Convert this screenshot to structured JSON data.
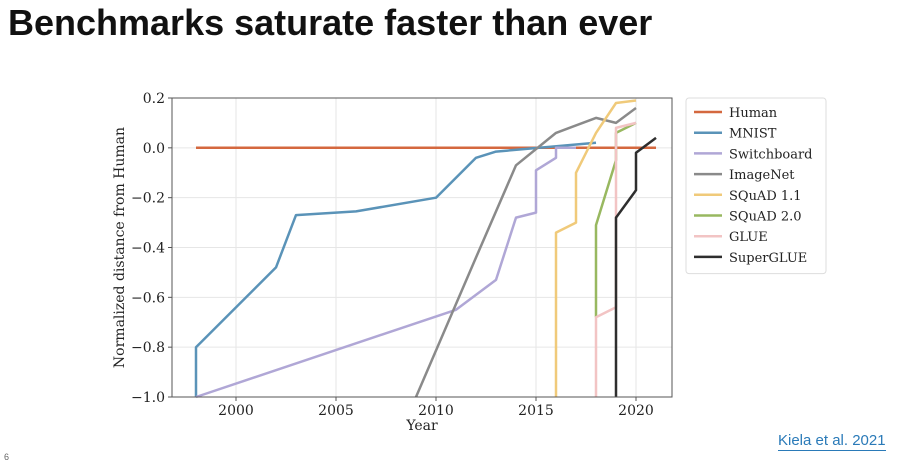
{
  "page": {
    "title": "Benchmarks saturate faster than ever",
    "citation": "Kiela et al. 2021",
    "slide_number": "6"
  },
  "chart_data": {
    "type": "line",
    "title": "",
    "xlabel": "Year",
    "ylabel": "Normalized distance from Human",
    "xlim": [
      1996.8,
      2021.8
    ],
    "ylim": [
      -1.0,
      0.2
    ],
    "xticks": [
      2000,
      2005,
      2010,
      2015,
      2020
    ],
    "yticks": [
      -1.0,
      -0.8,
      -0.6,
      -0.4,
      -0.2,
      0.0,
      0.2
    ],
    "ytick_labels": [
      "−1.0",
      "−0.8",
      "−0.6",
      "−0.4",
      "−0.2",
      "0.0",
      "0.2"
    ],
    "grid": true,
    "legend_position": "outside-right",
    "series": [
      {
        "name": "Human",
        "color": "#d4683f",
        "x": [
          1998,
          2021
        ],
        "y": [
          0.0,
          0.0
        ]
      },
      {
        "name": "MNIST",
        "color": "#5a93b8",
        "x": [
          1998,
          1998,
          2002,
          2003,
          2006,
          2010,
          2012,
          2013,
          2018
        ],
        "y": [
          -1.0,
          -0.8,
          -0.48,
          -0.27,
          -0.255,
          -0.2,
          -0.04,
          -0.015,
          0.02
        ]
      },
      {
        "name": "Switchboard",
        "color": "#b0a7d6",
        "x": [
          1998,
          2011,
          2013,
          2014,
          2015,
          2015,
          2016,
          2016,
          2017
        ],
        "y": [
          -1.0,
          -0.65,
          -0.53,
          -0.28,
          -0.26,
          -0.09,
          -0.04,
          0.0,
          0.0
        ]
      },
      {
        "name": "ImageNet",
        "color": "#8a8a8a",
        "x": [
          2009,
          2012,
          2014,
          2016,
          2018,
          2019,
          2020
        ],
        "y": [
          -1.0,
          -0.44,
          -0.07,
          0.06,
          0.12,
          0.1,
          0.16
        ]
      },
      {
        "name": "SQuAD 1.1",
        "color": "#f0ca7a",
        "x": [
          2016,
          2016,
          2017,
          2017,
          2018,
          2019,
          2020
        ],
        "y": [
          -1.0,
          -0.34,
          -0.3,
          -0.1,
          0.06,
          0.18,
          0.19
        ]
      },
      {
        "name": "SQuAD 2.0",
        "color": "#98b860",
        "x": [
          2018,
          2018,
          2019,
          2019,
          2020
        ],
        "y": [
          -0.68,
          -0.31,
          -0.05,
          0.06,
          0.1
        ]
      },
      {
        "name": "GLUE",
        "color": "#f2c4c4",
        "x": [
          2018,
          2018,
          2019,
          2019,
          2020
        ],
        "y": [
          -1.0,
          -0.68,
          -0.64,
          0.08,
          0.1
        ]
      },
      {
        "name": "SuperGLUE",
        "color": "#2e2e2e",
        "x": [
          2019,
          2019,
          2020,
          2020,
          2021
        ],
        "y": [
          -1.0,
          -0.28,
          -0.17,
          -0.02,
          0.04
        ]
      }
    ]
  }
}
